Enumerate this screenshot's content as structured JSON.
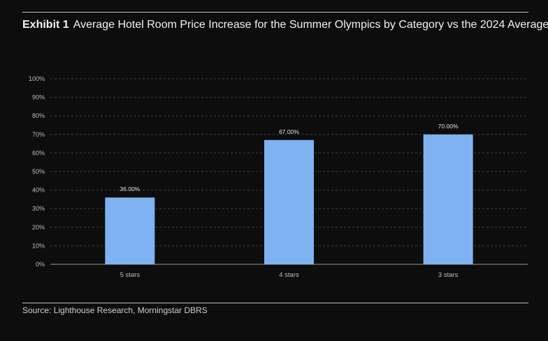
{
  "title": {
    "label": "Exhibit 1",
    "text": "Average Hotel Room Price Increase for the Summer Olympics by Category vs the 2024 Average"
  },
  "source": "Source: Lighthouse Research, Morningstar DBRS",
  "colors": {
    "bar": "#7fb2f0",
    "grid": "#3a3a3a",
    "axis": "#9a9a9a",
    "background": "#0d0d0d"
  },
  "chart_data": {
    "type": "bar",
    "title": "Average Hotel Room Price Increase for the Summer Olympics by Category vs the 2024 Average",
    "categories": [
      "5 stars",
      "4 stars",
      "3 stars"
    ],
    "values": [
      36,
      67,
      70
    ],
    "data_labels": [
      "36.00%",
      "67.00%",
      "70.00%"
    ],
    "ylim": [
      0,
      100
    ],
    "yticks": [
      0,
      10,
      20,
      30,
      40,
      50,
      60,
      70,
      80,
      90,
      100
    ],
    "ytick_labels": [
      "0%",
      "10%",
      "20%",
      "30%",
      "40%",
      "50%",
      "60%",
      "70%",
      "80%",
      "90%",
      "100%"
    ],
    "xlabel": "",
    "ylabel": "",
    "grid": true,
    "legend": "none"
  }
}
